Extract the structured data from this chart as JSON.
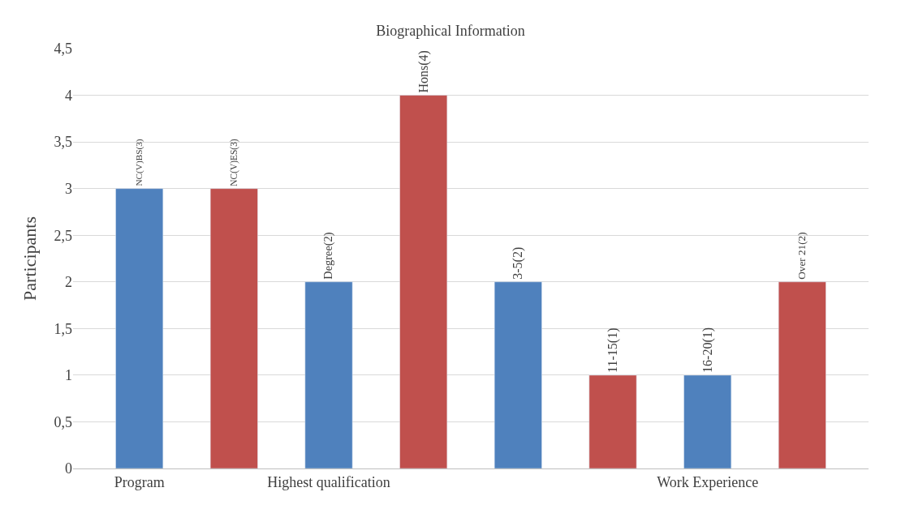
{
  "chart_data": {
    "type": "bar",
    "title": "Biographical Information",
    "ylabel": "Participants",
    "categories": [
      "Program",
      null,
      "Highest qualification",
      null,
      null,
      null,
      "Work Experience",
      null
    ],
    "values": [
      3,
      3,
      2,
      4,
      2,
      1,
      1,
      2
    ],
    "colors": [
      "#4f81bd",
      "#c0504d",
      "#4f81bd",
      "#c0504d",
      "#4f81bd",
      "#c0504d",
      "#4f81bd",
      "#c0504d"
    ],
    "value_labels": [
      "NC(V)BS(3)",
      "NC(V)ES(3)",
      "Degree(2)",
      "Hons(4)",
      "3-5(2)",
      "11-15(1)",
      "16-20(1)",
      "Over 21(2)"
    ],
    "ylim": [
      0,
      4.5
    ],
    "yticks": [
      0,
      {
        "value": 0.5,
        "label": "0,5"
      },
      1,
      {
        "value": 1.5,
        "label": "1,5"
      },
      2,
      {
        "value": 2.5,
        "label": "2,5"
      },
      3,
      {
        "value": 3.5,
        "label": "3,5"
      },
      4,
      {
        "value": 4.5,
        "label": "4,5"
      }
    ],
    "grid": "y",
    "legend": false
  }
}
